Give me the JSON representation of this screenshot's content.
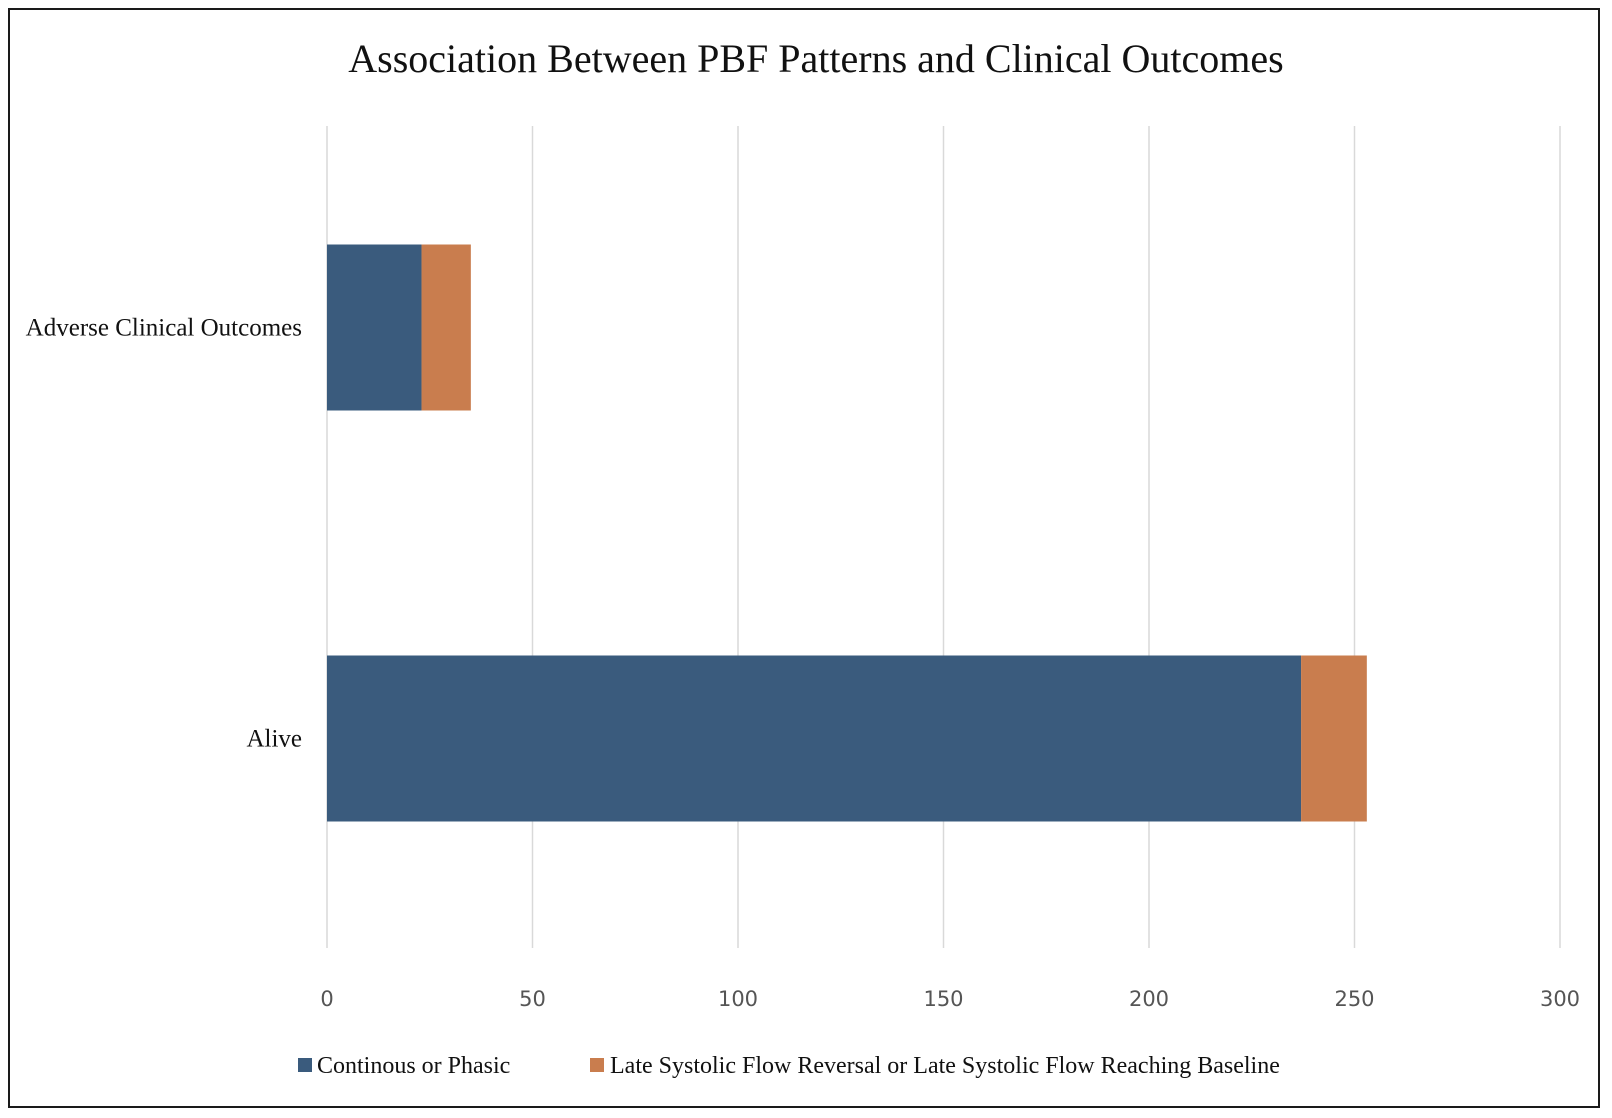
{
  "chart_data": {
    "type": "bar",
    "orientation": "horizontal",
    "stacked": true,
    "title": "Association Between PBF Patterns and Clinical Outcomes",
    "categories": [
      "Adverse Clinical Outcomes",
      "Alive"
    ],
    "series": [
      {
        "name": "Continous or Phasic",
        "values": [
          23,
          237
        ],
        "color": "#3a5b7d"
      },
      {
        "name": "Late Systolic Flow Reversal or Late Systolic Flow Reaching Baseline",
        "values": [
          12,
          16
        ],
        "color": "#c97d4e"
      }
    ],
    "xlim": [
      0,
      300
    ],
    "xticks": [
      "0",
      "50",
      "100",
      "150",
      "200",
      "250",
      "300"
    ],
    "grid": "vertical",
    "legend": "bottom"
  }
}
